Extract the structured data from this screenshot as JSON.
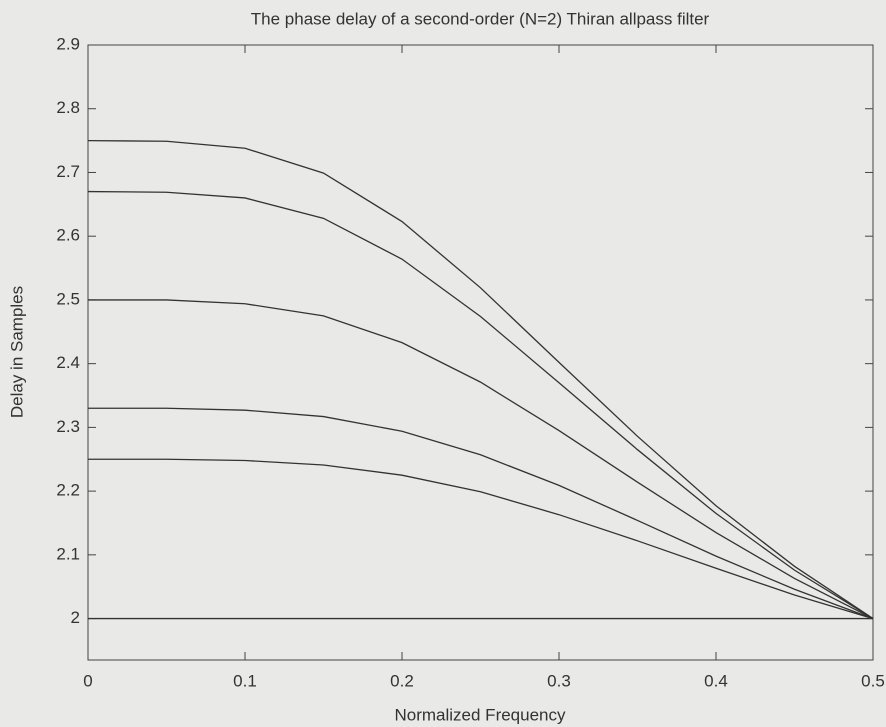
{
  "chart_data": {
    "type": "line",
    "title": "The phase delay of a second-order (N=2) Thiran allpass filter",
    "xlabel": "Normalized Frequency",
    "ylabel": "Delay in Samples",
    "x": [
      0,
      0.05,
      0.1,
      0.15,
      0.2,
      0.25,
      0.3,
      0.35,
      0.4,
      0.45,
      0.5
    ],
    "series": [
      {
        "color": "#333333",
        "values": [
          2.75,
          2.749,
          2.738,
          2.699,
          2.623,
          2.519,
          2.402,
          2.286,
          2.177,
          2.082,
          2.0
        ]
      },
      {
        "color": "#333333",
        "values": [
          2.67,
          2.669,
          2.66,
          2.628,
          2.564,
          2.474,
          2.37,
          2.265,
          2.165,
          2.076,
          2.0
        ]
      },
      {
        "color": "#333333",
        "values": [
          2.5,
          2.5,
          2.494,
          2.475,
          2.433,
          2.371,
          2.295,
          2.214,
          2.135,
          2.063,
          2.0
        ]
      },
      {
        "color": "#333333",
        "values": [
          2.33,
          2.33,
          2.327,
          2.317,
          2.294,
          2.257,
          2.209,
          2.154,
          2.098,
          2.046,
          2.0
        ]
      },
      {
        "color": "#333333",
        "values": [
          2.25,
          2.25,
          2.248,
          2.241,
          2.225,
          2.199,
          2.163,
          2.122,
          2.079,
          2.037,
          2.0
        ]
      },
      {
        "color": "#333333",
        "values": [
          2.0,
          2.0,
          2.0,
          2.0,
          2.0,
          2.0,
          2.0,
          2.0,
          2.0,
          2.0,
          2.0
        ]
      }
    ],
    "xlim": [
      0,
      0.5
    ],
    "xticks": [
      0,
      0.1,
      0.2,
      0.3,
      0.4,
      0.5
    ],
    "ylim": [
      1.935,
      2.9
    ],
    "yticks": [
      2,
      2.1,
      2.2,
      2.3,
      2.4,
      2.5,
      2.6,
      2.7,
      2.8,
      2.9
    ],
    "grid": false
  }
}
